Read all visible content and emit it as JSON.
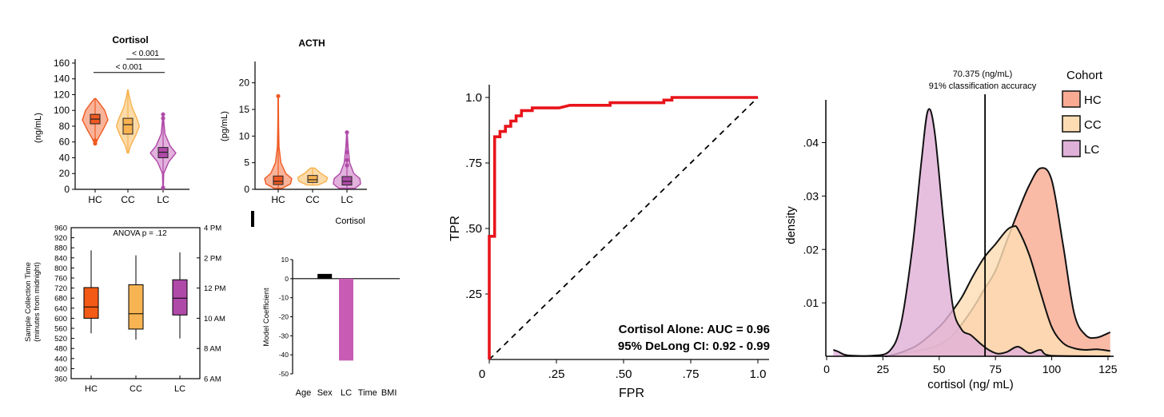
{
  "chart_data": [
    {
      "id": "cortisol_violin",
      "type": "violin",
      "title": "Cortisol",
      "ylabel": "(ng/mL)",
      "categories": [
        "HC",
        "CC",
        "LC"
      ],
      "yticks": [
        0,
        20,
        40,
        60,
        80,
        100,
        120,
        140,
        160
      ],
      "ylim": [
        0,
        165
      ],
      "colors": [
        "#f05a23",
        "#f8b24f",
        "#b04aa8"
      ],
      "fills": [
        "#f9b399",
        "#fcdba8",
        "#e2b2dd"
      ],
      "groups": [
        {
          "name": "HC",
          "min": 58,
          "q1": 83,
          "median": 89,
          "q3": 95,
          "max": 115,
          "width_profile": [
            [
              58,
              0.05
            ],
            [
              65,
              0.25
            ],
            [
              75,
              0.6
            ],
            [
              88,
              1.0
            ],
            [
              100,
              0.75
            ],
            [
              110,
              0.3
            ],
            [
              115,
              0.05
            ]
          ]
        },
        {
          "name": "CC",
          "min": 46,
          "q1": 70,
          "median": 82,
          "q3": 90,
          "max": 126,
          "width_profile": [
            [
              46,
              0.05
            ],
            [
              55,
              0.2
            ],
            [
              68,
              0.6
            ],
            [
              80,
              0.9
            ],
            [
              90,
              0.7
            ],
            [
              105,
              0.3
            ],
            [
              120,
              0.08
            ],
            [
              126,
              0.02
            ]
          ]
        },
        {
          "name": "LC",
          "min": 2,
          "q1": 40,
          "median": 47,
          "q3": 53,
          "max": 96,
          "width_profile": [
            [
              2,
              0.02
            ],
            [
              20,
              0.05
            ],
            [
              35,
              0.45
            ],
            [
              46,
              1.0
            ],
            [
              55,
              0.55
            ],
            [
              70,
              0.15
            ],
            [
              85,
              0.06
            ],
            [
              96,
              0.02
            ]
          ]
        }
      ],
      "outliers": [
        [
          0,
          58
        ],
        [
          0,
          62
        ],
        [
          2,
          2
        ],
        [
          2,
          90
        ],
        [
          2,
          95
        ]
      ],
      "annotations": [
        {
          "text": "< 0.001",
          "from": "HC",
          "to": "LC",
          "y": 148
        },
        {
          "text": "< 0.001",
          "from": "CC",
          "to": "LC",
          "y": 165
        }
      ]
    },
    {
      "id": "acth_violin",
      "type": "violin",
      "title": "ACTH",
      "ylabel": "(pg/mL)",
      "categories": [
        "HC",
        "CC",
        "LC"
      ],
      "yticks": [
        0,
        5,
        10,
        15,
        20
      ],
      "ylim": [
        0,
        24
      ],
      "colors": [
        "#f05a23",
        "#f8b24f",
        "#b04aa8"
      ],
      "fills": [
        "#f9b399",
        "#fcdba8",
        "#e2b2dd"
      ],
      "groups": [
        {
          "name": "HC",
          "min": 0.2,
          "q1": 0.9,
          "median": 1.5,
          "q3": 2.5,
          "max": 17.5,
          "width_profile": [
            [
              0.2,
              0.3
            ],
            [
              1,
              0.9
            ],
            [
              2,
              1.0
            ],
            [
              3,
              0.55
            ],
            [
              5,
              0.2
            ],
            [
              8,
              0.06
            ],
            [
              12,
              0.03
            ],
            [
              17.5,
              0.01
            ]
          ]
        },
        {
          "name": "CC",
          "min": 0.8,
          "q1": 1.3,
          "median": 1.8,
          "q3": 2.6,
          "max": 4,
          "width_profile": [
            [
              0.8,
              0.4
            ],
            [
              1.5,
              1.0
            ],
            [
              2.2,
              1.1
            ],
            [
              3,
              0.6
            ],
            [
              4,
              0.15
            ]
          ]
        },
        {
          "name": "LC",
          "min": 0.2,
          "q1": 0.8,
          "median": 1.5,
          "q3": 2.4,
          "max": 10.7,
          "width_profile": [
            [
              0.2,
              0.6
            ],
            [
              1,
              1.0
            ],
            [
              2,
              0.95
            ],
            [
              3,
              0.5
            ],
            [
              5,
              0.2
            ],
            [
              8,
              0.08
            ],
            [
              10.7,
              0.02
            ]
          ]
        }
      ],
      "outliers": [
        [
          0,
          17.5
        ],
        [
          2,
          10.7
        ],
        [
          2,
          7
        ],
        [
          2,
          5.5
        ],
        [
          2,
          4.5
        ]
      ]
    },
    {
      "id": "collection_time_box",
      "type": "box",
      "title": "ANOVA p = .12",
      "ylabel": "Sample Collection Time",
      "ylabel2": "(minutes from midnight)",
      "categories": [
        "HC",
        "CC",
        "LC"
      ],
      "yticks": [
        360,
        400,
        440,
        480,
        520,
        560,
        600,
        640,
        680,
        720,
        760,
        800,
        840,
        880,
        920,
        960
      ],
      "ylim": [
        360,
        960
      ],
      "right_ticks": [
        {
          "value": 360,
          "label": "6 AM"
        },
        {
          "value": 480,
          "label": "8 AM"
        },
        {
          "value": 600,
          "label": "10 AM"
        },
        {
          "value": 720,
          "label": "12 PM"
        },
        {
          "value": 840,
          "label": "2 PM"
        },
        {
          "value": 960,
          "label": "4 PM"
        }
      ],
      "colors": [
        "#f25a15",
        "#f8b452",
        "#b04aa8"
      ],
      "groups": [
        {
          "name": "HC",
          "min": 540,
          "q1": 600,
          "median": 645,
          "q3": 722,
          "max": 870
        },
        {
          "name": "CC",
          "min": 515,
          "q1": 557,
          "median": 618,
          "q3": 733,
          "max": 850
        },
        {
          "name": "LC",
          "min": 520,
          "q1": 613,
          "median": 680,
          "q3": 753,
          "max": 862
        }
      ]
    },
    {
      "id": "model_coefficient_bar",
      "type": "bar",
      "title": "Cortisol",
      "ylabel": "Model Coefficient",
      "categories": [
        "Age",
        "Sex",
        "LC",
        "Time",
        "BMI"
      ],
      "values": [
        0,
        2.5,
        -43,
        0,
        0
      ],
      "yticks": [
        10,
        0,
        -10,
        -20,
        -30,
        -40,
        -50
      ],
      "ylim": [
        -50,
        10
      ],
      "colors": [
        "#000000",
        "#000000",
        "#c85cb4",
        "#000000",
        "#000000"
      ]
    },
    {
      "id": "roc_curve",
      "type": "line",
      "xlabel": "FPR",
      "ylabel": "TPR",
      "xlim": [
        0,
        1
      ],
      "ylim": [
        0,
        1
      ],
      "xtick_labels": [
        "0",
        ".25",
        ".50",
        ".75",
        "1.0"
      ],
      "xtick_values": [
        0,
        0.25,
        0.5,
        0.75,
        1.0
      ],
      "ytick_labels": [
        ".25",
        ".50",
        ".75",
        "1.0"
      ],
      "ytick_values": [
        0.25,
        0.5,
        0.75,
        1.0
      ],
      "series": [
        {
          "color": "#e8141b",
          "points": [
            [
              0,
              0
            ],
            [
              0,
              0.47
            ],
            [
              0.02,
              0.47
            ],
            [
              0.02,
              0.85
            ],
            [
              0.04,
              0.85
            ],
            [
              0.04,
              0.87
            ],
            [
              0.06,
              0.87
            ],
            [
              0.06,
              0.89
            ],
            [
              0.08,
              0.89
            ],
            [
              0.08,
              0.91
            ],
            [
              0.1,
              0.91
            ],
            [
              0.1,
              0.93
            ],
            [
              0.12,
              0.93
            ],
            [
              0.12,
              0.95
            ],
            [
              0.16,
              0.95
            ],
            [
              0.16,
              0.96
            ],
            [
              0.26,
              0.96
            ],
            [
              0.3,
              0.97
            ],
            [
              0.45,
              0.97
            ],
            [
              0.45,
              0.98
            ],
            [
              0.65,
              0.98
            ],
            [
              0.65,
              0.99
            ],
            [
              0.68,
              0.99
            ],
            [
              0.68,
              1.0
            ],
            [
              1.0,
              1.0
            ]
          ]
        },
        {
          "color": "#000000",
          "dashed": true,
          "points": [
            [
              0,
              0
            ],
            [
              1,
              1
            ]
          ]
        }
      ],
      "annotations": [
        "Cortisol Alone: AUC = 0.96",
        "95% DeLong CI: 0.92 - 0.99"
      ]
    },
    {
      "id": "cortisol_density",
      "type": "area",
      "xlabel": "cortisol (ng/ mL)",
      "ylabel": "density",
      "xlim": [
        0,
        130
      ],
      "ylim": [
        0,
        0.048
      ],
      "xticks": [
        0,
        25,
        50,
        75,
        100,
        125
      ],
      "yticks": [
        0.01,
        0.02,
        0.03,
        0.04
      ],
      "ytick_labels": [
        ".01",
        ".02",
        ".03",
        ".04"
      ],
      "threshold": {
        "value": 70.375,
        "label1": "70.375 (ng/mL)",
        "label2": "91% classification accuracy"
      },
      "legend": {
        "title": "Cohort",
        "placement": "right"
      },
      "series": [
        {
          "name": "HC",
          "fill": "#f8ab92",
          "x": [
            26,
            30,
            40,
            48,
            55,
            60,
            65,
            70,
            75,
            80,
            85,
            90,
            95,
            100,
            105,
            110,
            115,
            120,
            126
          ],
          "y": [
            0,
            0.0003,
            0.001,
            0.0018,
            0.0035,
            0.006,
            0.009,
            0.0125,
            0.016,
            0.0215,
            0.027,
            0.032,
            0.0352,
            0.033,
            0.021,
            0.008,
            0.004,
            0.0035,
            0.0045
          ]
        },
        {
          "name": "CC",
          "fill": "#fcddb3",
          "x": [
            26,
            30,
            40,
            50,
            55,
            60,
            65,
            70,
            75,
            80,
            83,
            85,
            90,
            95,
            100,
            105,
            110,
            115,
            120,
            126
          ],
          "y": [
            0,
            0.0003,
            0.002,
            0.0055,
            0.008,
            0.011,
            0.015,
            0.0185,
            0.021,
            0.0236,
            0.0243,
            0.0238,
            0.019,
            0.012,
            0.0055,
            0.0025,
            0.0015,
            0.0012,
            0.0013,
            0.001
          ]
        },
        {
          "name": "LC",
          "fill": "#e0b1d8",
          "x": [
            3,
            5,
            8,
            12,
            20,
            28,
            33,
            38,
            42,
            45,
            48,
            52,
            56,
            60,
            64,
            68,
            72,
            76,
            80,
            85,
            90,
            95,
            100,
            126
          ],
          "y": [
            0.0012,
            0.0009,
            0.0003,
            0.0001,
            0.0001,
            0.001,
            0.006,
            0.02,
            0.036,
            0.046,
            0.042,
            0.025,
            0.0095,
            0.005,
            0.004,
            0.0025,
            0.0012,
            0.0005,
            0.0008,
            0.0018,
            0.0006,
            0.0012,
            0.0001,
            0
          ]
        }
      ]
    }
  ]
}
